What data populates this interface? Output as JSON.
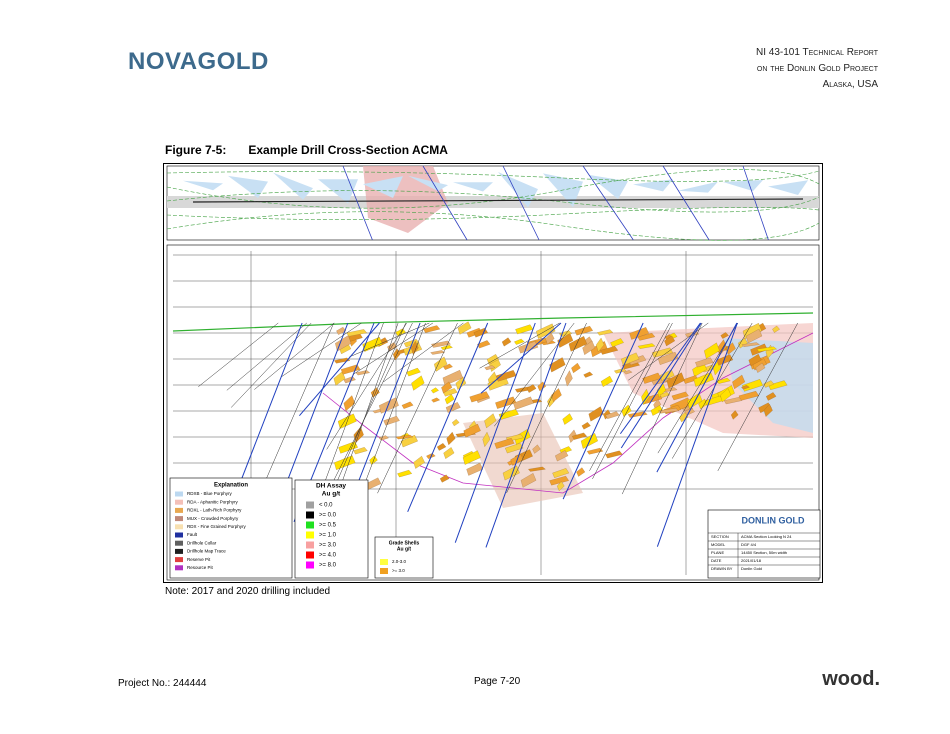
{
  "header": {
    "logo": "NOVAGOLD",
    "report_lines": [
      "NI 43-101 Technical Report",
      "on the Donlin Gold Project",
      "Alaska, USA"
    ]
  },
  "figure": {
    "label": "Figure 7-5:",
    "title": "Example Drill Cross-Section ACMA",
    "explanation": {
      "title": "Explanation",
      "items": [
        {
          "label": "RDXB - Blue Porphyry",
          "color": "#bcd8f0"
        },
        {
          "label": "RDA - Aphanitic Porphyry",
          "color": "#f4c0b8"
        },
        {
          "label": "RDXL - Lath-Rich Porphyry",
          "color": "#e8a850"
        },
        {
          "label": "MUX - Crowded Porphyry",
          "color": "#c08878"
        },
        {
          "label": "RDX - Fine Grained Porphyry",
          "color": "#f8e0b0"
        },
        {
          "label": "Fault",
          "color": "#2030a0"
        },
        {
          "label": "Drillhole Collar",
          "color": "#606060"
        },
        {
          "label": "Drillhole Map Trace",
          "color": "#202020"
        },
        {
          "label": "Reserve Pit",
          "color": "#e04040"
        },
        {
          "label": "Resource Pit",
          "color": "#b030c0"
        }
      ]
    },
    "assay": {
      "title": "DH Assay",
      "unit": "Au g/t",
      "items": [
        {
          "label": "< 0.0",
          "color": "#a0a0a0"
        },
        {
          "label": ">= 0.0",
          "color": "#000000"
        },
        {
          "label": ">= 0.5",
          "color": "#20e020"
        },
        {
          "label": ">= 1.0",
          "color": "#ffff00"
        },
        {
          "label": ">= 3.0",
          "color": "#f8a0a0"
        },
        {
          "label": ">= 4.0",
          "color": "#ff0000"
        },
        {
          "label": ">= 8.0",
          "color": "#ff00ff"
        }
      ]
    },
    "shells": {
      "title": "Grade Shells",
      "unit": "Au g/t",
      "items": [
        {
          "label": "2.0-3.0",
          "color": "#ffff40"
        },
        {
          "label": ">= 3.0",
          "color": "#f0a020"
        }
      ]
    },
    "title_block": {
      "company": "DONLIN GOLD",
      "rows": [
        [
          "SECTION",
          "ACMA Section Looking N 24"
        ],
        [
          "MODEL",
          "DGF 4/4"
        ],
        [
          "PLANE",
          "14450 Section, 50m width"
        ],
        [
          "DATE",
          "2021/01/18"
        ],
        [
          "DRAWN BY",
          "Donlin Gold"
        ]
      ]
    }
  },
  "note": "Note:  2017 and 2020 drilling included",
  "footer": {
    "project": "Project No.: 244444",
    "page": "Page 7-20",
    "logo": "wood."
  }
}
